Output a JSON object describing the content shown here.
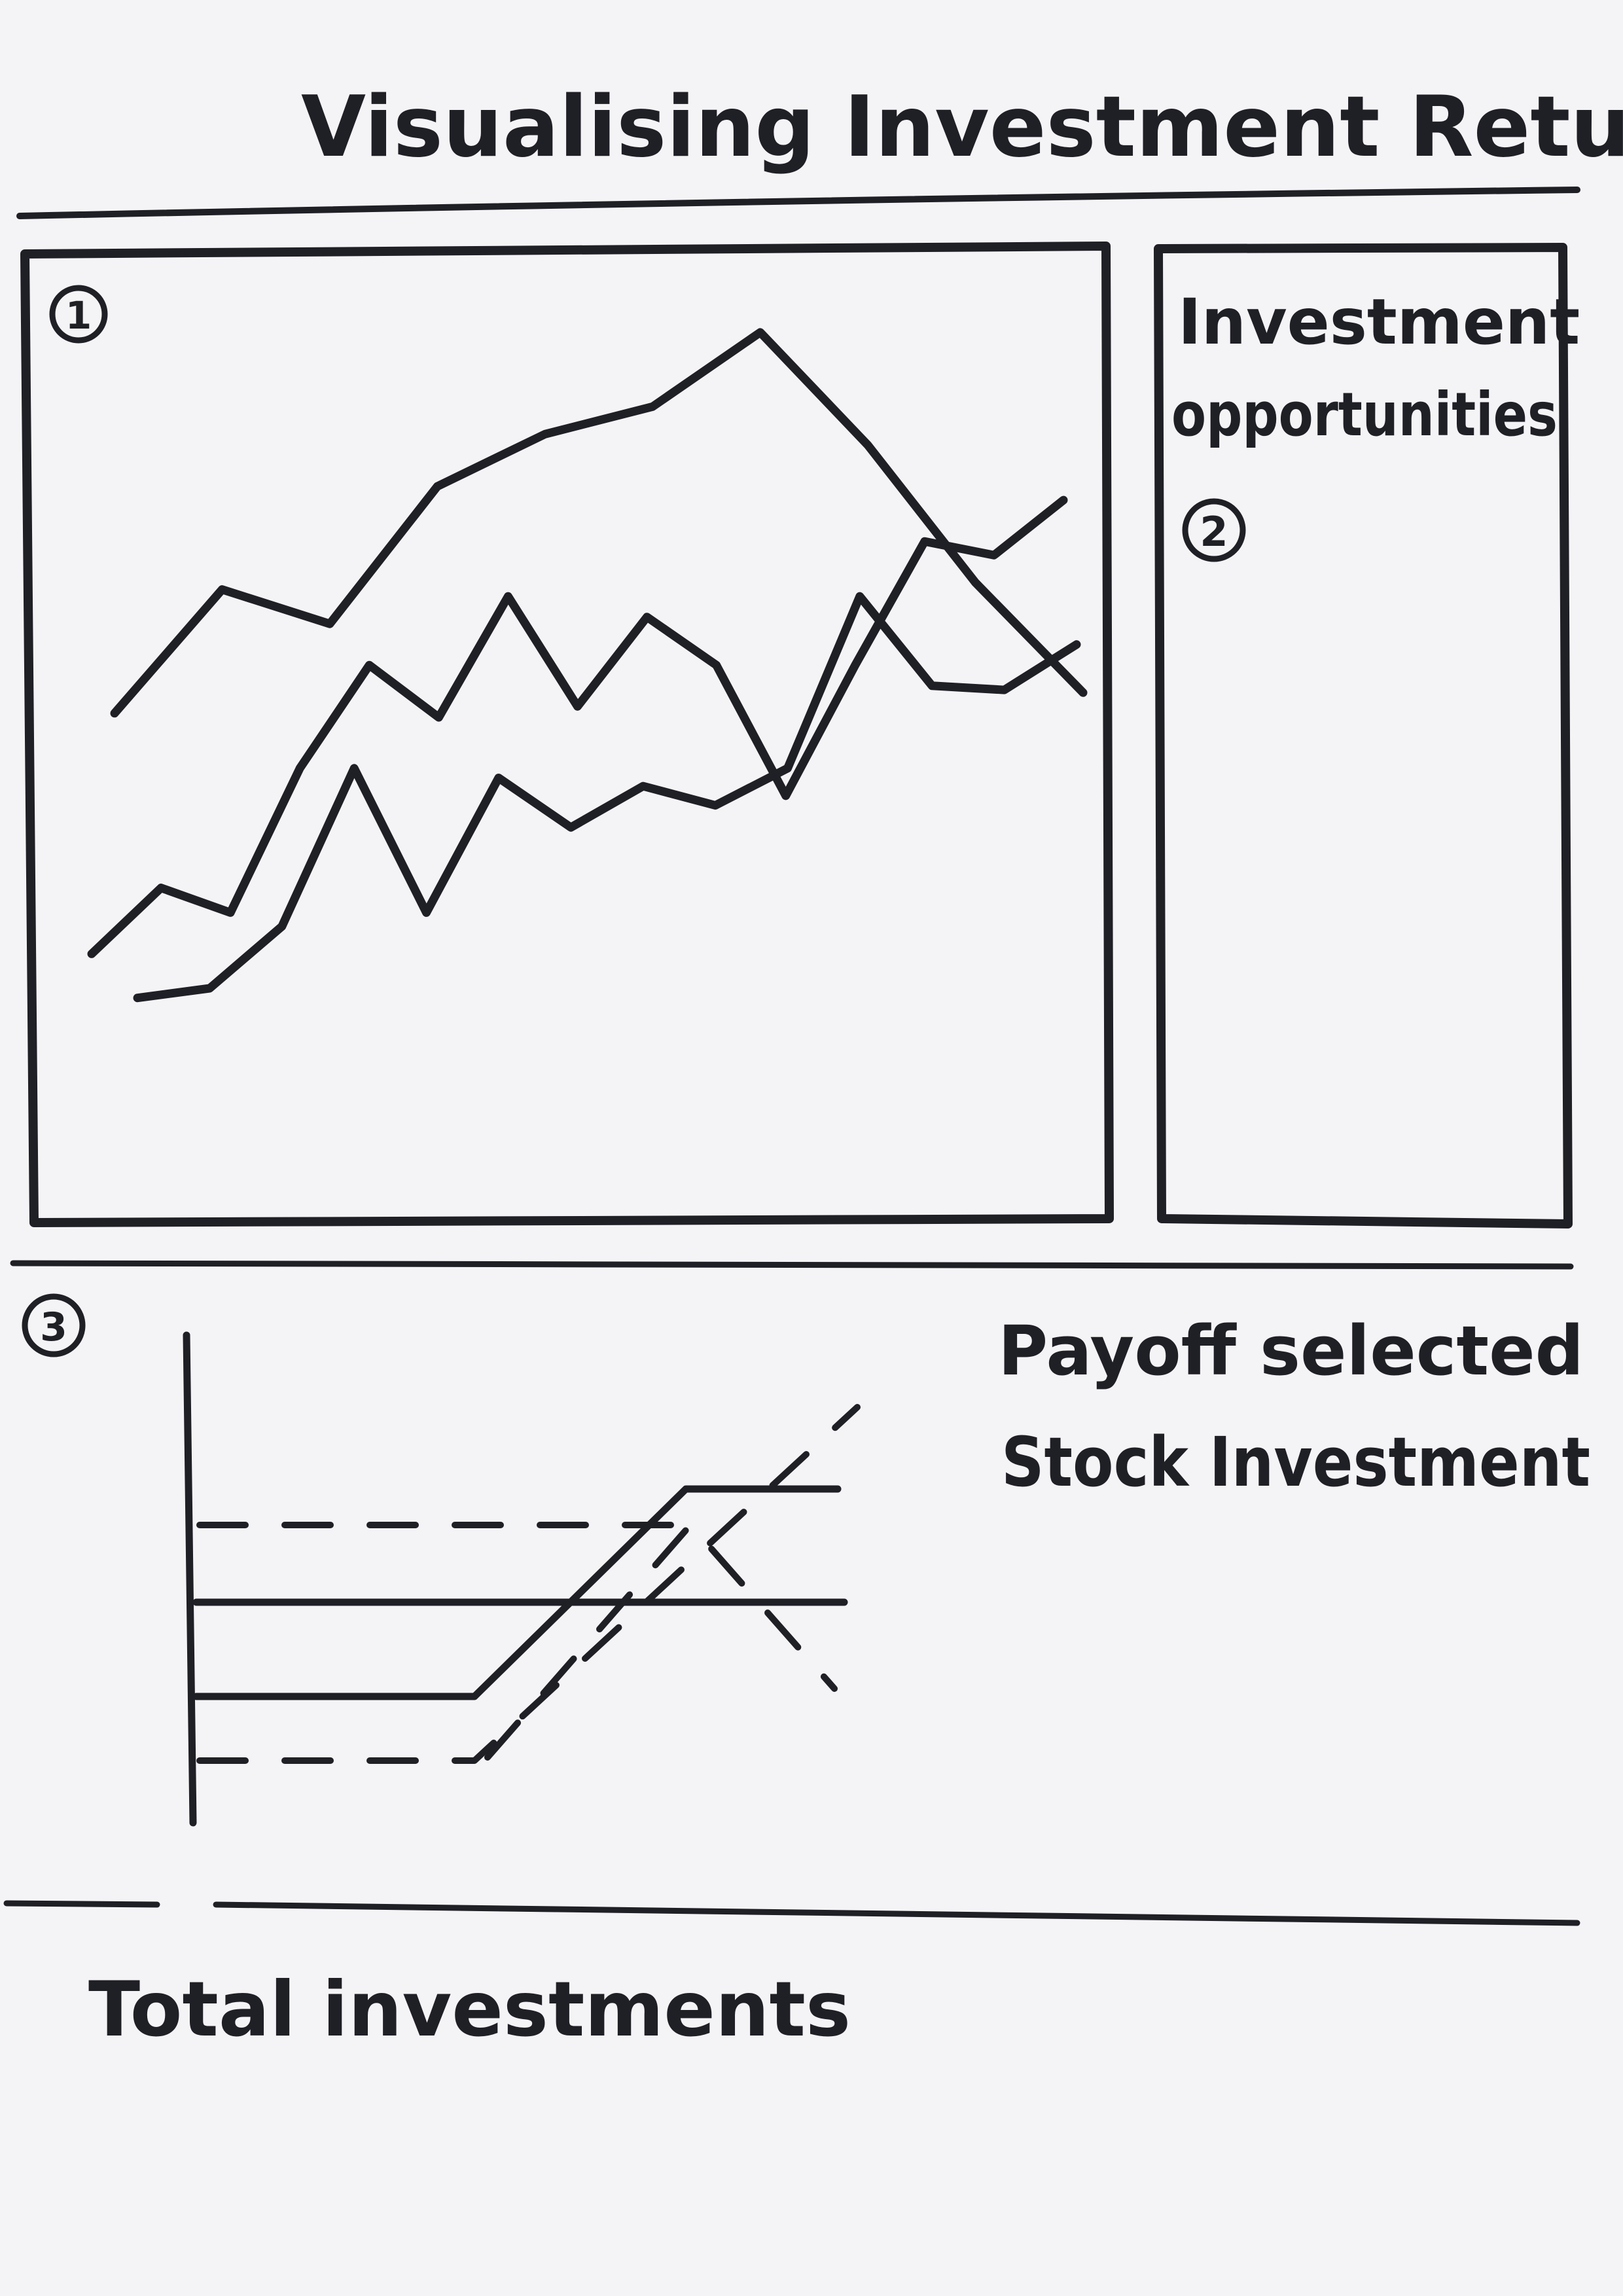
{
  "title": "Visualising Investment Returns",
  "panel1": {
    "marker": "1",
    "chart_data": {
      "type": "line",
      "series": [
        {
          "values": [
            545,
            455,
            480,
            380,
            342,
            322,
            268,
            350,
            450,
            530
          ]
        },
        {
          "values": [
            720,
            672,
            690,
            585,
            510,
            548,
            460,
            540,
            475,
            510,
            605,
            510,
            420,
            430,
            390
          ]
        },
        {
          "values": [
            752,
            745,
            700,
            585,
            690,
            592,
            628,
            598,
            612,
            585,
            460,
            525,
            528,
            495
          ]
        }
      ]
    }
  },
  "panel2": {
    "marker": "2",
    "heading_line1": "Investment",
    "heading_line2": "opportunities"
  },
  "panel3": {
    "marker": "3",
    "heading_line1": "Payoff selected",
    "heading_line2": "Stock Investment"
  },
  "footer": {
    "label": "Total investments"
  }
}
